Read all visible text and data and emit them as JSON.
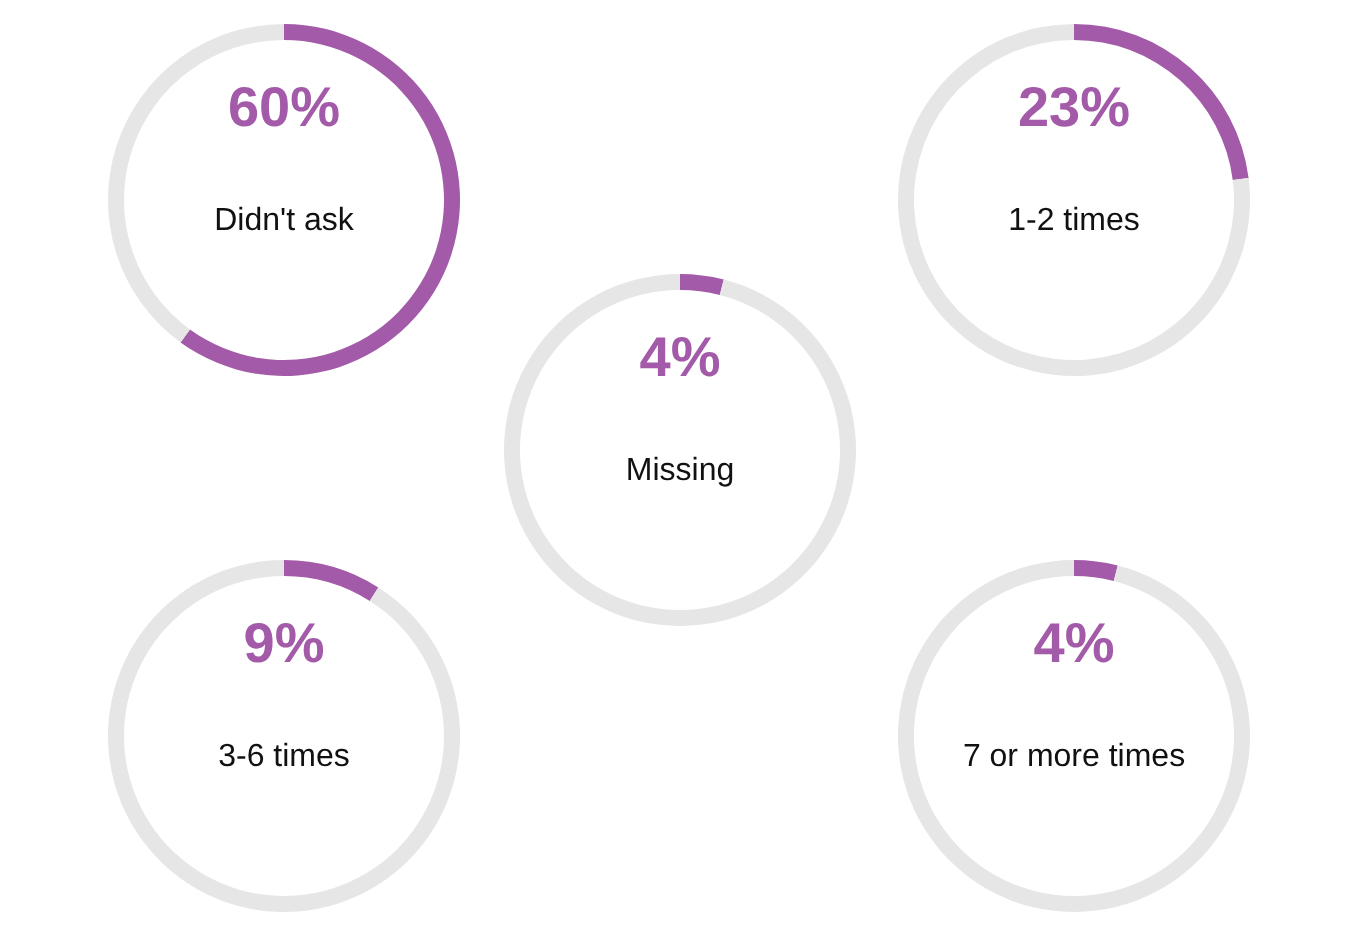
{
  "chart_data": [
    {
      "type": "donut",
      "title": "Didn't ask",
      "categories": [
        null,
        null
      ],
      "values": [
        60,
        40
      ],
      "colors": [
        "#a35aa8",
        "#e6e6e6"
      ],
      "value_labels": [
        "60%",
        null
      ]
    },
    {
      "type": "donut",
      "title": "1-2 times",
      "categories": [
        null,
        null
      ],
      "values": [
        23,
        77
      ],
      "colors": [
        "#a35aa8",
        "#e6e6e6"
      ],
      "value_labels": [
        "23%",
        null
      ]
    },
    {
      "type": "donut",
      "title": "Missing",
      "categories": [
        null,
        null
      ],
      "values": [
        4,
        96
      ],
      "colors": [
        "#a35aa8",
        "#e6e6e6"
      ],
      "value_labels": [
        "4%",
        null
      ]
    },
    {
      "type": "donut",
      "title": "3-6 times",
      "categories": [
        null,
        null
      ],
      "values": [
        9,
        91
      ],
      "colors": [
        "#a35aa8",
        "#e6e6e6"
      ],
      "value_labels": [
        "9%",
        null
      ]
    },
    {
      "type": "donut",
      "title": "7 or more times",
      "categories": [
        null,
        null
      ],
      "values": [
        4,
        96
      ],
      "colors": [
        "#a35aa8",
        "#e6e6e6"
      ],
      "value_labels": [
        "4%",
        null
      ]
    }
  ]
}
